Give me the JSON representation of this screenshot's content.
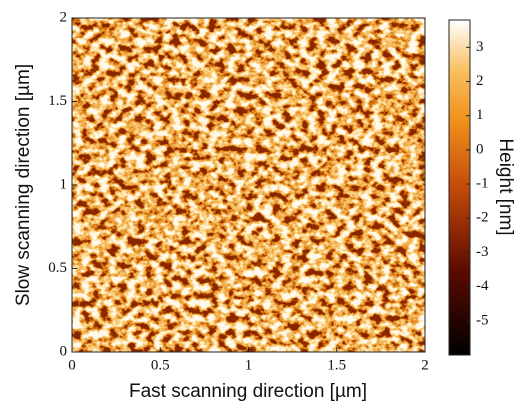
{
  "chart_data": {
    "type": "image",
    "xlabel": "Fast scanning direction [µm]",
    "ylabel": "Slow scanning direction [µm]",
    "xlim": [
      0,
      2
    ],
    "ylim": [
      0,
      2
    ],
    "xticks": [
      0,
      0.5,
      1,
      1.5,
      2
    ],
    "yticks": [
      0,
      0.5,
      1,
      1.5,
      2
    ],
    "colorbar": {
      "label": "Height [nm]",
      "lim": [
        -6,
        3.8
      ],
      "ticks": [
        -5,
        -4,
        -3,
        -2,
        -1,
        0,
        1,
        2,
        3
      ]
    }
  }
}
